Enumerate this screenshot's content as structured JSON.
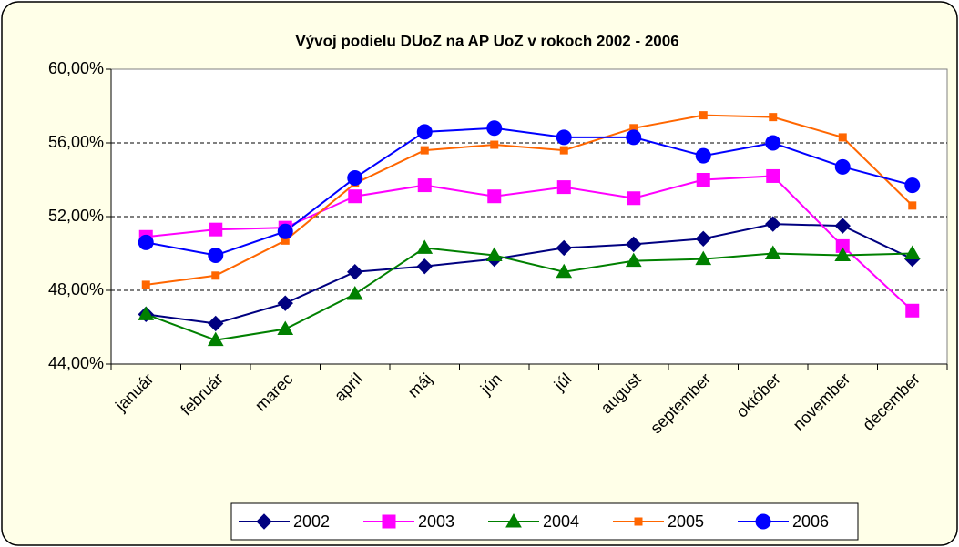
{
  "chart_data": {
    "type": "line",
    "title": "Vývoj podielu DUoZ na AP UoZ v rokoch 2002 - 2006",
    "categories": [
      "január",
      "február",
      "marec",
      "apríl",
      "máj",
      "jún",
      "júl",
      "august",
      "september",
      "október",
      "november",
      "december"
    ],
    "series": [
      {
        "name": "2002",
        "color": "#000080",
        "marker": "diamond",
        "values": [
          46.7,
          46.2,
          47.3,
          49.0,
          49.3,
          49.7,
          50.3,
          50.5,
          50.8,
          51.6,
          51.5,
          49.7
        ]
      },
      {
        "name": "2003",
        "color": "#ff00ff",
        "marker": "square",
        "values": [
          50.9,
          51.3,
          51.4,
          53.1,
          53.7,
          53.1,
          53.6,
          53.0,
          54.0,
          54.2,
          50.4,
          46.9
        ]
      },
      {
        "name": "2004",
        "color": "#008000",
        "marker": "triangle",
        "values": [
          46.7,
          45.3,
          45.9,
          47.8,
          50.3,
          49.9,
          49.0,
          49.6,
          49.7,
          50.0,
          49.9,
          50.0
        ]
      },
      {
        "name": "2005",
        "color": "#ff6600",
        "marker": "small-square",
        "values": [
          48.3,
          48.8,
          50.7,
          53.8,
          55.6,
          55.9,
          55.6,
          56.8,
          57.5,
          57.4,
          56.3,
          52.6
        ]
      },
      {
        "name": "2006",
        "color": "#0000ff",
        "marker": "circle",
        "values": [
          50.6,
          49.9,
          51.2,
          54.1,
          56.6,
          56.8,
          56.3,
          56.3,
          55.3,
          56.0,
          54.7,
          53.7
        ]
      }
    ],
    "ylim": [
      44,
      60
    ],
    "yticks": [
      {
        "value": 44,
        "label": "44,00%"
      },
      {
        "value": 48,
        "label": "48,00%"
      },
      {
        "value": 52,
        "label": "52,00%"
      },
      {
        "value": 56,
        "label": "56,00%"
      },
      {
        "value": 60,
        "label": "60,00%"
      }
    ],
    "grid": true,
    "legend": "bottom"
  }
}
